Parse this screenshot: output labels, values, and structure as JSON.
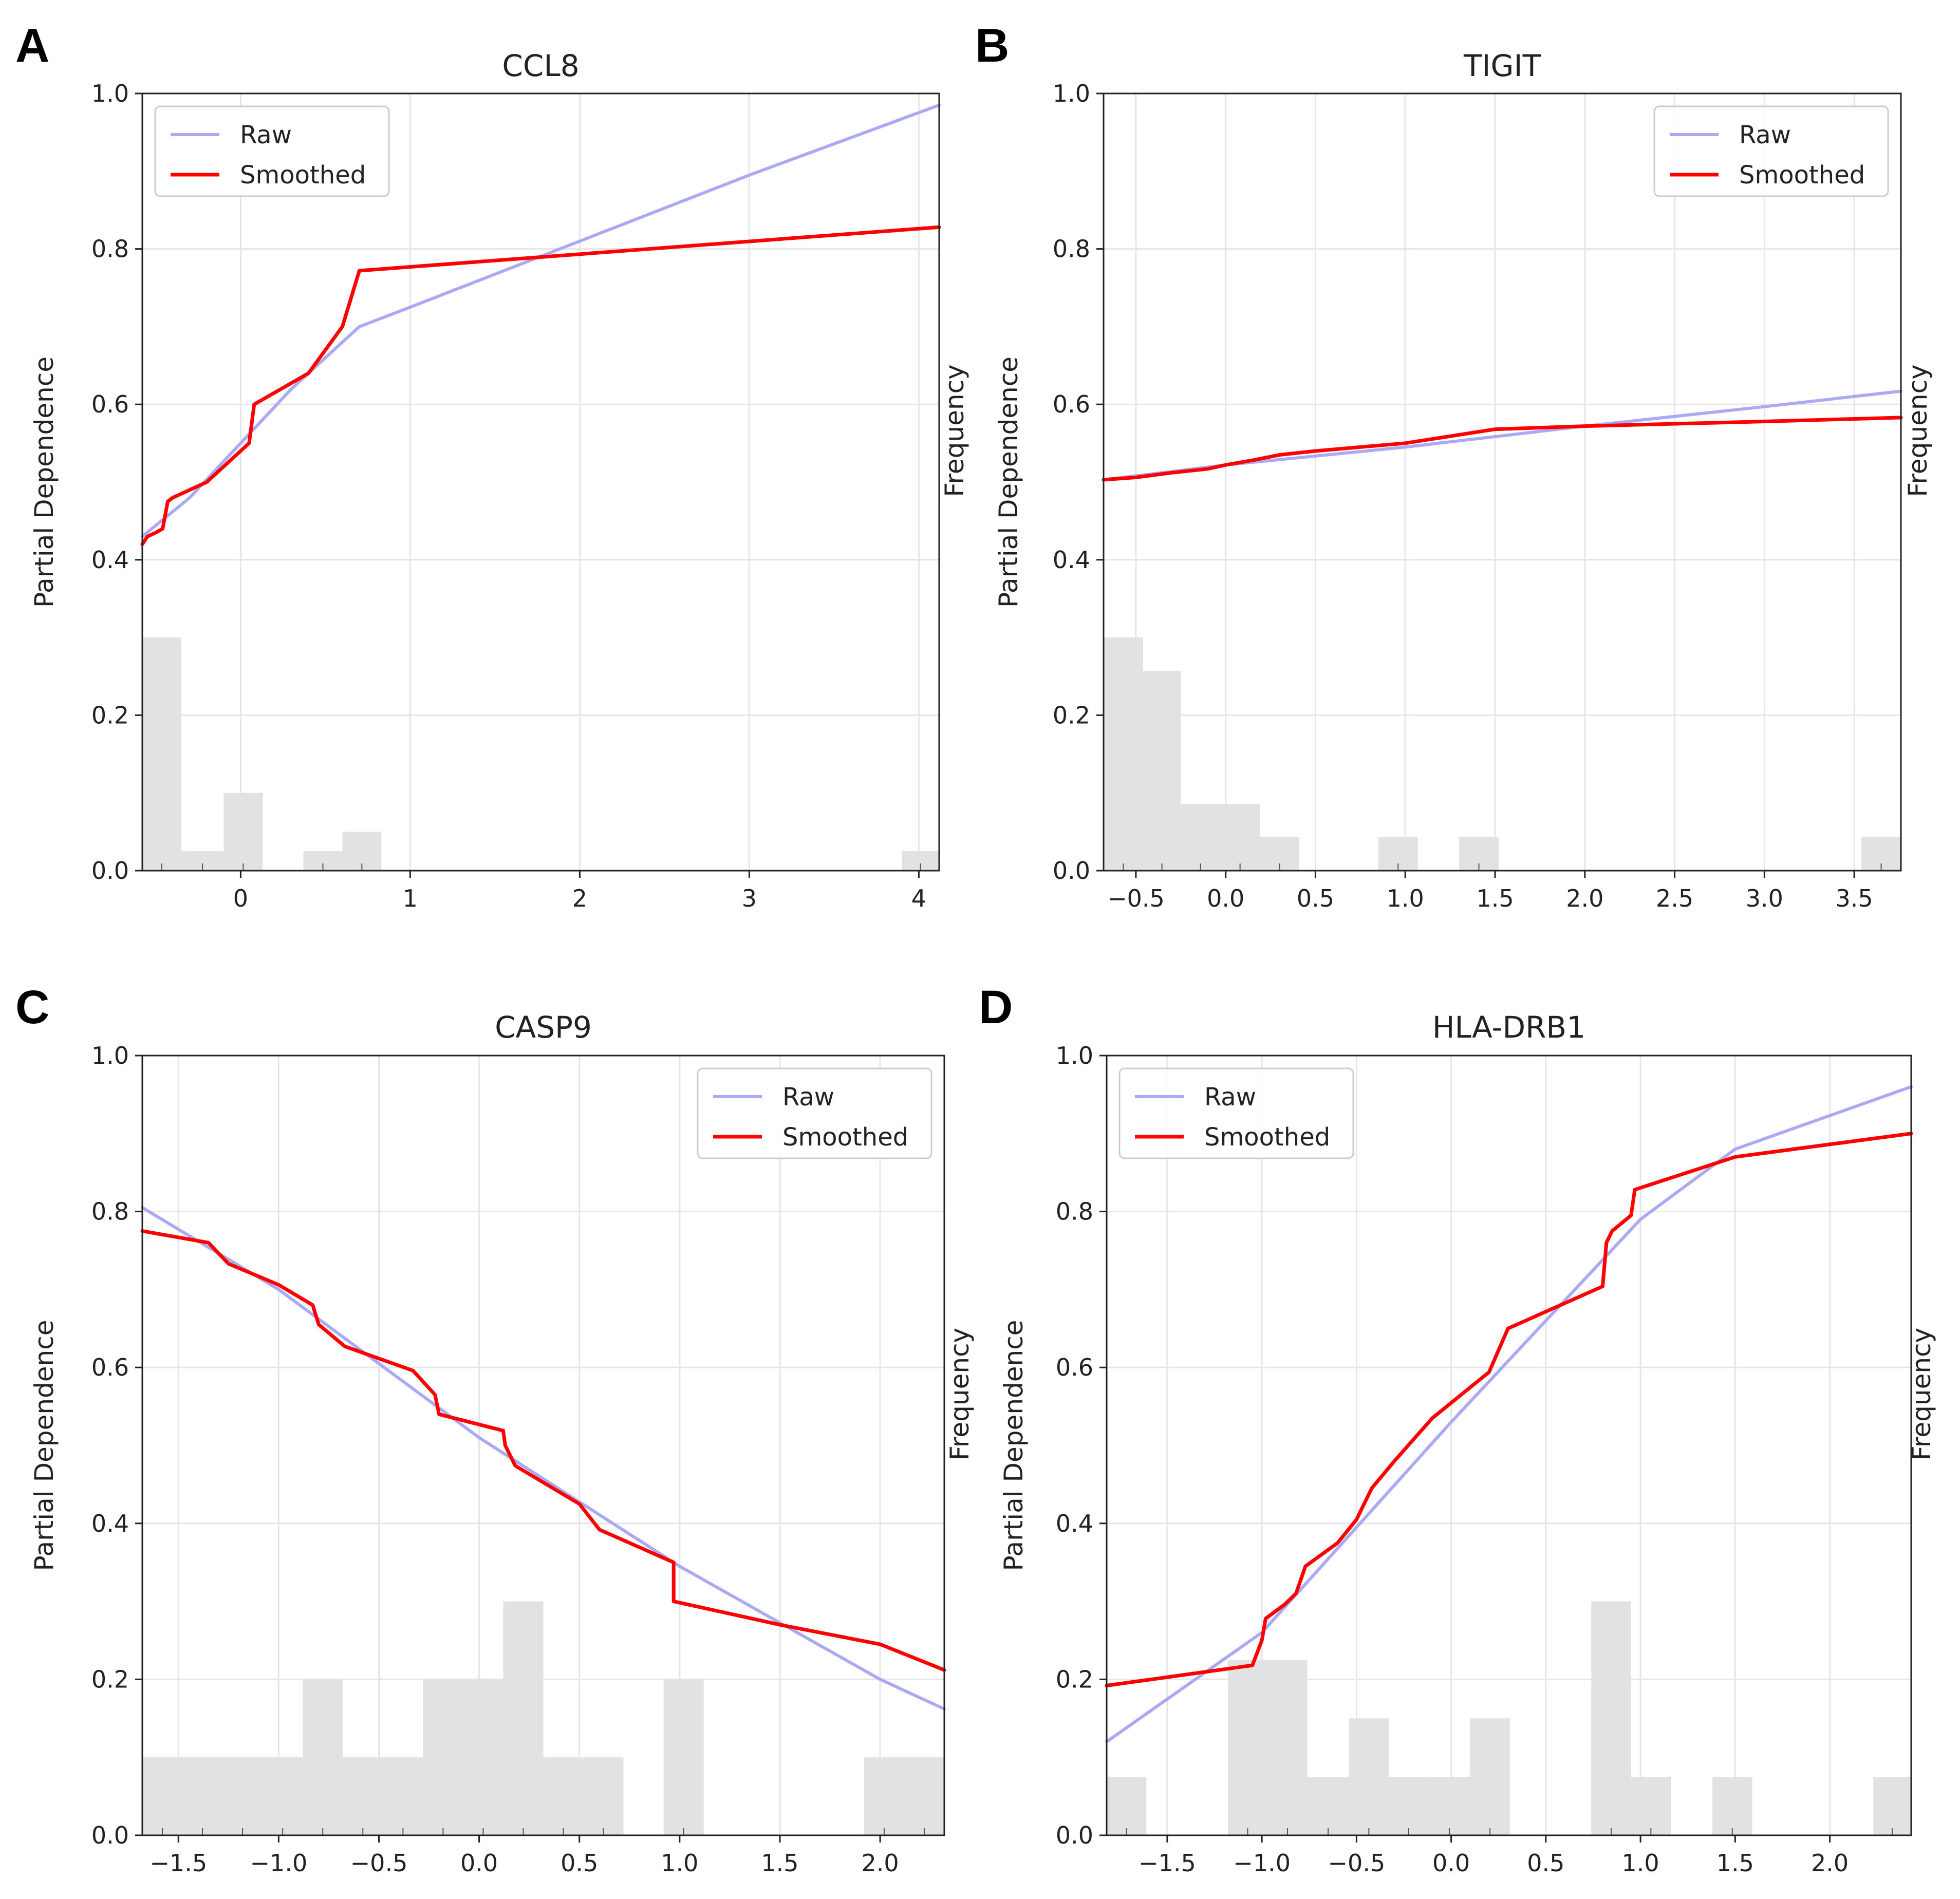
{
  "colors": {
    "raw": "#a9a9f5",
    "smoothed": "#ff0000",
    "histogram": "#e2e2e2",
    "grid": "#e6e6e6",
    "axis": "#222222"
  },
  "chart_data": [
    {
      "panel": "A",
      "type": "line",
      "title": "CCL8",
      "xlabel": "",
      "ylabel": "Partial Dependence",
      "ylabel_right": "Frequency",
      "xlim": [
        -0.58,
        4.12
      ],
      "ylim": [
        0,
        1.0
      ],
      "xticks": [
        0,
        1,
        2,
        3,
        4
      ],
      "xtick_labels": [
        "0",
        "1",
        "2",
        "3",
        "4"
      ],
      "yticks": [
        0,
        0.2,
        0.4,
        0.6,
        0.8,
        1.0
      ],
      "ytick_labels": [
        "0.0",
        "0.2",
        "0.4",
        "0.6",
        "0.8",
        "1.0"
      ],
      "legend": {
        "location": "upper left",
        "entries": [
          "Raw",
          "Smoothed"
        ]
      },
      "series": [
        {
          "name": "Raw",
          "x": [
            -0.58,
            -0.3,
            0.0,
            0.3,
            0.7,
            1.0,
            2.0,
            3.0,
            4.12
          ],
          "y": [
            0.43,
            0.48,
            0.55,
            0.62,
            0.7,
            0.725,
            0.81,
            0.895,
            0.985
          ]
        },
        {
          "name": "Smoothed",
          "x": [
            -0.58,
            -0.55,
            -0.5,
            -0.46,
            -0.43,
            -0.4,
            -0.2,
            -0.05,
            0.05,
            0.08,
            0.4,
            0.6,
            0.7,
            4.12
          ],
          "y": [
            0.42,
            0.43,
            0.435,
            0.44,
            0.475,
            0.48,
            0.5,
            0.53,
            0.55,
            0.6,
            0.64,
            0.7,
            0.772,
            0.828
          ]
        }
      ],
      "histogram": [
        {
          "x0": -0.58,
          "x1": -0.35,
          "value": 0.3
        },
        {
          "x0": -0.35,
          "x1": -0.1,
          "value": 0.025
        },
        {
          "x0": -0.1,
          "x1": 0.13,
          "value": 0.1
        },
        {
          "x0": 0.37,
          "x1": 0.6,
          "value": 0.025
        },
        {
          "x0": 0.6,
          "x1": 0.83,
          "value": 0.05
        },
        {
          "x0": 3.9,
          "x1": 4.12,
          "value": 0.025
        }
      ]
    },
    {
      "panel": "B",
      "type": "line",
      "title": "TIGIT",
      "xlabel": "",
      "ylabel": "Partial Dependence",
      "ylabel_right": "Frequency",
      "xlim": [
        -0.68,
        3.76
      ],
      "ylim": [
        0,
        1.0
      ],
      "xticks": [
        -0.5,
        0.0,
        0.5,
        1.0,
        1.5,
        2.0,
        2.5,
        3.0,
        3.5
      ],
      "xtick_labels": [
        "−0.5",
        "0.0",
        "0.5",
        "1.0",
        "1.5",
        "2.0",
        "2.5",
        "3.0",
        "3.5"
      ],
      "yticks": [
        0,
        0.2,
        0.4,
        0.6,
        0.8,
        1.0
      ],
      "ytick_labels": [
        "0.0",
        "0.2",
        "0.4",
        "0.6",
        "0.8",
        "1.0"
      ],
      "legend": {
        "location": "upper right",
        "entries": [
          "Raw",
          "Smoothed"
        ]
      },
      "series": [
        {
          "name": "Raw",
          "x": [
            -0.68,
            0.0,
            1.0,
            2.0,
            3.0,
            3.76
          ],
          "y": [
            0.503,
            0.522,
            0.545,
            0.572,
            0.597,
            0.617
          ]
        },
        {
          "name": "Smoothed",
          "x": [
            -0.68,
            -0.5,
            -0.3,
            -0.1,
            0.0,
            0.15,
            0.3,
            0.5,
            1.0,
            1.5,
            2.0,
            3.0,
            3.76
          ],
          "y": [
            0.503,
            0.506,
            0.512,
            0.517,
            0.522,
            0.528,
            0.535,
            0.54,
            0.55,
            0.568,
            0.572,
            0.578,
            0.583
          ]
        }
      ],
      "histogram": [
        {
          "x0": -0.68,
          "x1": -0.46,
          "value": 0.3
        },
        {
          "x0": -0.46,
          "x1": -0.25,
          "value": 0.257
        },
        {
          "x0": -0.25,
          "x1": -0.03,
          "value": 0.086
        },
        {
          "x0": -0.03,
          "x1": 0.19,
          "value": 0.086
        },
        {
          "x0": 0.19,
          "x1": 0.41,
          "value": 0.043
        },
        {
          "x0": 0.85,
          "x1": 1.07,
          "value": 0.043
        },
        {
          "x0": 1.3,
          "x1": 1.52,
          "value": 0.043
        },
        {
          "x0": 3.54,
          "x1": 3.76,
          "value": 0.043
        }
      ]
    },
    {
      "panel": "C",
      "type": "line",
      "title": "CASP9",
      "xlabel": "",
      "ylabel": "Partial Dependence",
      "ylabel_right": "Frequency",
      "xlim": [
        -1.68,
        2.32
      ],
      "ylim": [
        0,
        1.0
      ],
      "xticks": [
        -1.5,
        -1.0,
        -0.5,
        0.0,
        0.5,
        1.0,
        1.5,
        2.0
      ],
      "xtick_labels": [
        "−1.5",
        "−1.0",
        "−0.5",
        "0.0",
        "0.5",
        "1.0",
        "1.5",
        "2.0"
      ],
      "yticks": [
        0,
        0.2,
        0.4,
        0.6,
        0.8,
        1.0
      ],
      "ytick_labels": [
        "0.0",
        "0.2",
        "0.4",
        "0.6",
        "0.8",
        "1.0"
      ],
      "legend": {
        "location": "upper right",
        "entries": [
          "Raw",
          "Smoothed"
        ]
      },
      "series": [
        {
          "name": "Raw",
          "x": [
            -1.68,
            -1.0,
            0.0,
            1.0,
            2.0,
            2.32
          ],
          "y": [
            0.805,
            0.7,
            0.51,
            0.345,
            0.2,
            0.162
          ]
        },
        {
          "name": "Smoothed",
          "x": [
            -1.68,
            -1.35,
            -1.25,
            -1.0,
            -0.83,
            -0.8,
            -0.67,
            -0.33,
            -0.22,
            -0.2,
            0.12,
            0.13,
            0.18,
            0.5,
            0.6,
            0.97,
            0.97,
            1.5,
            2.0,
            2.32
          ],
          "y": [
            0.775,
            0.76,
            0.733,
            0.706,
            0.68,
            0.655,
            0.627,
            0.596,
            0.565,
            0.54,
            0.519,
            0.5,
            0.474,
            0.425,
            0.392,
            0.35,
            0.3,
            0.27,
            0.245,
            0.212
          ]
        }
      ],
      "histogram": [
        {
          "x0": -1.68,
          "x1": -1.48,
          "value": 0.1
        },
        {
          "x0": -1.48,
          "x1": -1.28,
          "value": 0.1
        },
        {
          "x0": -1.28,
          "x1": -1.08,
          "value": 0.1
        },
        {
          "x0": -1.08,
          "x1": -0.88,
          "value": 0.1
        },
        {
          "x0": -0.88,
          "x1": -0.68,
          "value": 0.2
        },
        {
          "x0": -0.68,
          "x1": -0.48,
          "value": 0.1
        },
        {
          "x0": -0.48,
          "x1": -0.28,
          "value": 0.1
        },
        {
          "x0": -0.28,
          "x1": -0.08,
          "value": 0.2
        },
        {
          "x0": -0.08,
          "x1": 0.12,
          "value": 0.2
        },
        {
          "x0": 0.12,
          "x1": 0.32,
          "value": 0.3
        },
        {
          "x0": 0.32,
          "x1": 0.52,
          "value": 0.1
        },
        {
          "x0": 0.52,
          "x1": 0.72,
          "value": 0.1
        },
        {
          "x0": 0.92,
          "x1": 1.12,
          "value": 0.2
        },
        {
          "x0": 1.92,
          "x1": 2.12,
          "value": 0.1
        },
        {
          "x0": 2.12,
          "x1": 2.32,
          "value": 0.1
        }
      ]
    },
    {
      "panel": "D",
      "type": "line",
      "title": "HLA-DRB1",
      "xlabel": "",
      "ylabel": "Partial Dependence",
      "ylabel_right": "Frequency",
      "xlim": [
        -1.82,
        2.43
      ],
      "ylim": [
        0,
        1.0
      ],
      "xticks": [
        -1.5,
        -1.0,
        -0.5,
        0.0,
        0.5,
        1.0,
        1.5,
        2.0
      ],
      "xtick_labels": [
        "−1.5",
        "−1.0",
        "−0.5",
        "0.0",
        "0.5",
        "1.0",
        "1.5",
        "2.0"
      ],
      "yticks": [
        0,
        0.2,
        0.4,
        0.6,
        0.8,
        1.0
      ],
      "ytick_labels": [
        "0.0",
        "0.2",
        "0.4",
        "0.6",
        "0.8",
        "1.0"
      ],
      "legend": {
        "location": "upper left",
        "entries": [
          "Raw",
          "Smoothed"
        ]
      },
      "series": [
        {
          "name": "Raw",
          "x": [
            -1.82,
            -1.0,
            0.0,
            1.0,
            1.5,
            2.43
          ],
          "y": [
            0.12,
            0.26,
            0.53,
            0.79,
            0.88,
            0.96
          ]
        },
        {
          "name": "Smoothed",
          "x": [
            -1.82,
            -1.05,
            -1.0,
            -0.98,
            -0.88,
            -0.82,
            -0.77,
            -0.6,
            -0.5,
            -0.42,
            -0.3,
            -0.1,
            0.2,
            0.3,
            0.8,
            0.82,
            0.85,
            0.95,
            0.97,
            1.5,
            2.43
          ],
          "y": [
            0.192,
            0.218,
            0.25,
            0.278,
            0.296,
            0.31,
            0.345,
            0.375,
            0.405,
            0.445,
            0.48,
            0.535,
            0.594,
            0.65,
            0.704,
            0.76,
            0.775,
            0.795,
            0.828,
            0.87,
            0.9
          ]
        }
      ],
      "histogram": [
        {
          "x0": -1.82,
          "x1": -1.61,
          "value": 0.075
        },
        {
          "x0": -1.18,
          "x1": -0.97,
          "value": 0.225
        },
        {
          "x0": -0.97,
          "x1": -0.76,
          "value": 0.225
        },
        {
          "x0": -0.76,
          "x1": -0.54,
          "value": 0.075
        },
        {
          "x0": -0.54,
          "x1": -0.33,
          "value": 0.15
        },
        {
          "x0": -0.33,
          "x1": -0.12,
          "value": 0.075
        },
        {
          "x0": -0.12,
          "x1": 0.1,
          "value": 0.075
        },
        {
          "x0": 0.1,
          "x1": 0.31,
          "value": 0.15
        },
        {
          "x0": 0.74,
          "x1": 0.95,
          "value": 0.3
        },
        {
          "x0": 0.95,
          "x1": 1.16,
          "value": 0.075
        },
        {
          "x0": 1.38,
          "x1": 1.59,
          "value": 0.075
        },
        {
          "x0": 2.23,
          "x1": 2.43,
          "value": 0.075
        }
      ]
    }
  ]
}
